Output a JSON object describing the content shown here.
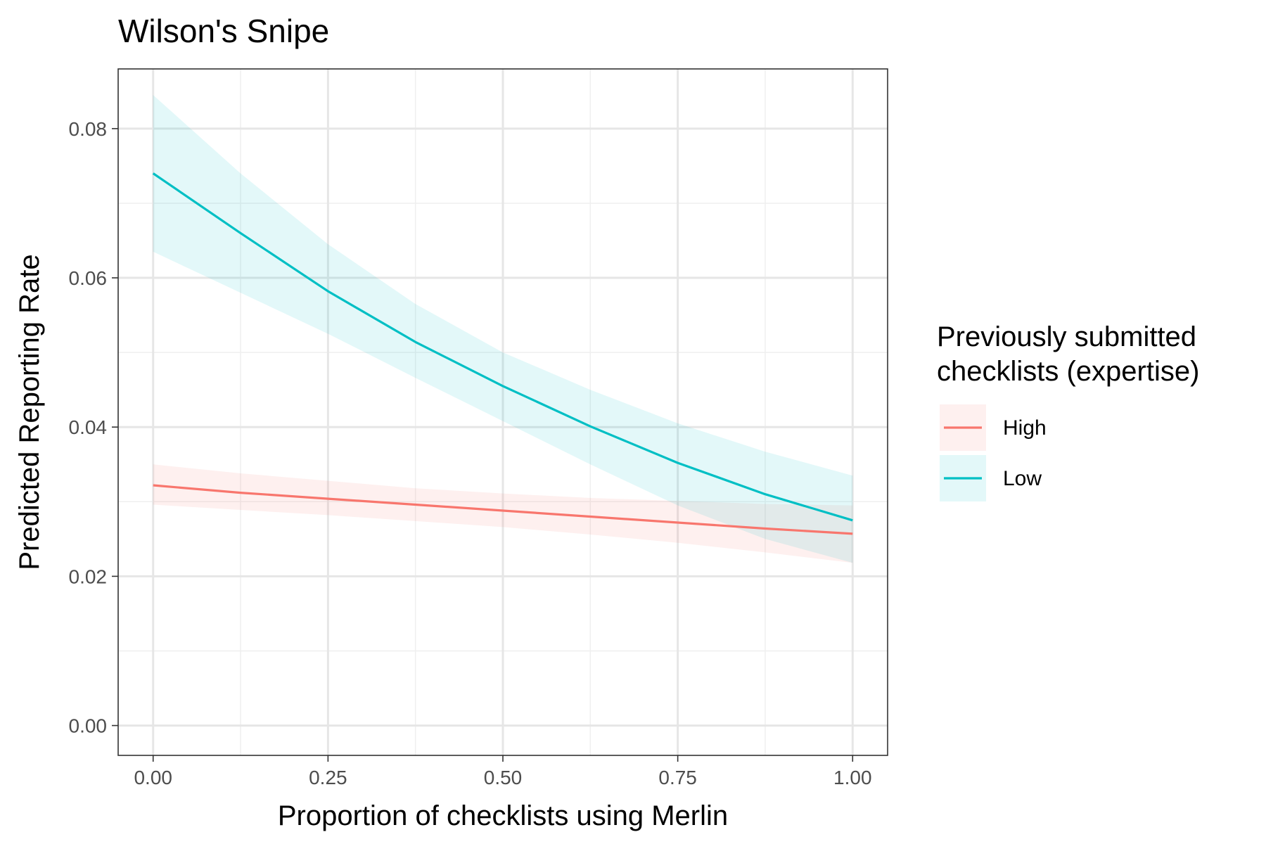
{
  "chart_data": {
    "type": "line",
    "title": "Wilson's Snipe",
    "xlabel": "Proportion of checklists using Merlin",
    "ylabel": "Predicted Reporting Rate",
    "xlim": [
      -0.05,
      1.05
    ],
    "ylim": [
      -0.004,
      0.088
    ],
    "x_ticks": [
      0,
      0.25,
      0.5,
      0.75,
      1
    ],
    "x_tick_labels": [
      "0.00",
      "0.25",
      "0.50",
      "0.75",
      "1.00"
    ],
    "y_ticks": [
      0,
      0.02,
      0.04,
      0.06,
      0.08
    ],
    "y_tick_labels": [
      "0.00",
      "0.02",
      "0.04",
      "0.06",
      "0.08"
    ],
    "grid": true,
    "legend": {
      "title_lines": [
        "Previously submitted",
        "checklists (expertise)"
      ],
      "position": "right"
    },
    "x": [
      0,
      0.125,
      0.25,
      0.375,
      0.5,
      0.625,
      0.75,
      0.875,
      1
    ],
    "series": [
      {
        "name": "High",
        "color": "#F8766D",
        "values": [
          0.0322,
          0.0312,
          0.0304,
          0.0296,
          0.0288,
          0.028,
          0.0272,
          0.0264,
          0.0257
        ],
        "lower": [
          0.0296,
          0.0289,
          0.0282,
          0.0274,
          0.0266,
          0.0256,
          0.0245,
          0.0232,
          0.0218
        ],
        "upper": [
          0.035,
          0.0338,
          0.0328,
          0.0318,
          0.0311,
          0.0305,
          0.0301,
          0.0297,
          0.0295
        ]
      },
      {
        "name": "Low",
        "color": "#00BFC4",
        "values": [
          0.074,
          0.066,
          0.0582,
          0.0514,
          0.0455,
          0.0401,
          0.0352,
          0.031,
          0.0275
        ],
        "lower": [
          0.0635,
          0.058,
          0.0525,
          0.0466,
          0.0408,
          0.035,
          0.0295,
          0.025,
          0.0218
        ],
        "upper": [
          0.0845,
          0.074,
          0.0645,
          0.0565,
          0.05,
          0.045,
          0.0405,
          0.0367,
          0.0335
        ]
      }
    ]
  }
}
